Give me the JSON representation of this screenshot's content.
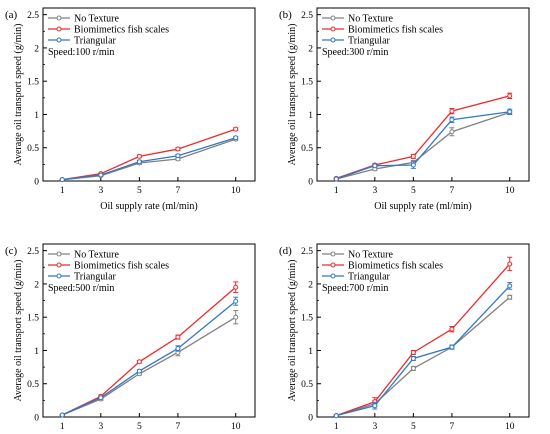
{
  "chart_data": [
    {
      "type": "line",
      "panel_label": "(a)",
      "speed_label": "Speed:100 r/min",
      "xlabel": "Oil supply rate (ml/min)",
      "ylabel": "Average oil transport speed (g/min)",
      "x": [
        1,
        3,
        5,
        7,
        10
      ],
      "x_ticks": [
        "1",
        "3",
        "5",
        "7",
        "10"
      ],
      "y_ticks": [
        "0",
        "0.5",
        "1",
        "1.5",
        "2",
        "2.5"
      ],
      "ylim": [
        0,
        2.6
      ],
      "legend": "top-left",
      "grid": false,
      "series": [
        {
          "name": "No Texture",
          "color": "#808080",
          "values": [
            0.02,
            0.08,
            0.27,
            0.33,
            0.63
          ],
          "errors": [
            0.005,
            0.01,
            0.02,
            0.02,
            0.02
          ]
        },
        {
          "name": "Biomimetics fish scales",
          "color": "#ee2a2a",
          "values": [
            0.02,
            0.11,
            0.37,
            0.48,
            0.78
          ],
          "errors": [
            0.005,
            0.01,
            0.02,
            0.02,
            0.02
          ]
        },
        {
          "name": "Triangular",
          "color": "#2f78c8",
          "values": [
            0.02,
            0.09,
            0.29,
            0.38,
            0.65
          ],
          "errors": [
            0.005,
            0.01,
            0.02,
            0.02,
            0.02
          ]
        }
      ]
    },
    {
      "type": "line",
      "panel_label": "(b)",
      "speed_label": "Speed:300 r/min",
      "xlabel": "Oil supply rate (ml/min)",
      "ylabel": "Average oil transport speed (g/min)",
      "x": [
        1,
        3,
        5,
        7,
        10
      ],
      "x_ticks": [
        "1",
        "3",
        "5",
        "7",
        "10"
      ],
      "y_ticks": [
        "0",
        "0.5",
        "1",
        "1.5",
        "2",
        "2.5"
      ],
      "ylim": [
        0,
        2.6
      ],
      "legend": "top-left",
      "grid": false,
      "series": [
        {
          "name": "No Texture",
          "color": "#808080",
          "values": [
            0.03,
            0.18,
            0.28,
            0.74,
            1.03
          ],
          "errors": [
            0.005,
            0.02,
            0.03,
            0.06,
            0.03
          ]
        },
        {
          "name": "Biomimetics fish scales",
          "color": "#ee2a2a",
          "values": [
            0.04,
            0.24,
            0.37,
            1.05,
            1.28
          ],
          "errors": [
            0.005,
            0.02,
            0.03,
            0.04,
            0.04
          ]
        },
        {
          "name": "Triangular",
          "color": "#2f78c8",
          "values": [
            0.03,
            0.23,
            0.24,
            0.92,
            1.04
          ],
          "errors": [
            0.005,
            0.02,
            0.05,
            0.04,
            0.04
          ]
        }
      ]
    },
    {
      "type": "line",
      "panel_label": "(c)",
      "speed_label": "Speed:500 r/min",
      "xlabel": "Oil supply rate (ml/min)",
      "ylabel": "Average oil transport speed (g/min)",
      "x": [
        1,
        3,
        5,
        7,
        10
      ],
      "x_ticks": [
        "1",
        "3",
        "5",
        "7",
        "10"
      ],
      "y_ticks": [
        "0",
        "0.5",
        "1",
        "1.5",
        "2",
        "2.5"
      ],
      "ylim": [
        0,
        2.6
      ],
      "legend": "top-left",
      "grid": false,
      "series": [
        {
          "name": "No Texture",
          "color": "#808080",
          "values": [
            0.03,
            0.27,
            0.65,
            0.97,
            1.5
          ],
          "errors": [
            0.005,
            0.02,
            0.02,
            0.05,
            0.1
          ]
        },
        {
          "name": "Biomimetics fish scales",
          "color": "#ee2a2a",
          "values": [
            0.03,
            0.31,
            0.83,
            1.2,
            1.95
          ],
          "errors": [
            0.005,
            0.02,
            0.02,
            0.03,
            0.08
          ]
        },
        {
          "name": "Triangular",
          "color": "#2f78c8",
          "values": [
            0.03,
            0.29,
            0.69,
            1.03,
            1.74
          ],
          "errors": [
            0.005,
            0.02,
            0.02,
            0.04,
            0.06
          ]
        }
      ]
    },
    {
      "type": "line",
      "panel_label": "(d)",
      "speed_label": "Speed:700 r/min",
      "xlabel": "Oil supply rate (ml/min)",
      "ylabel": "Average oil transport speed (g/min)",
      "x": [
        1,
        3,
        5,
        7,
        10
      ],
      "x_ticks": [
        "1",
        "3",
        "5",
        "7",
        "10"
      ],
      "y_ticks": [
        "0",
        "0.5",
        "1",
        "1.5",
        "2",
        "2.5"
      ],
      "ylim": [
        0,
        2.6
      ],
      "legend": "top-left",
      "grid": false,
      "series": [
        {
          "name": "No Texture",
          "color": "#808080",
          "values": [
            0.02,
            0.2,
            0.73,
            1.05,
            1.8
          ],
          "errors": [
            0.005,
            0.05,
            0.03,
            0.03,
            0.03
          ]
        },
        {
          "name": "Biomimetics fish scales",
          "color": "#ee2a2a",
          "values": [
            0.02,
            0.23,
            0.97,
            1.32,
            2.3
          ],
          "errors": [
            0.005,
            0.06,
            0.03,
            0.04,
            0.1
          ]
        },
        {
          "name": "Triangular",
          "color": "#2f78c8",
          "values": [
            0.02,
            0.17,
            0.88,
            1.05,
            1.97
          ],
          "errors": [
            0.005,
            0.05,
            0.03,
            0.03,
            0.05
          ]
        }
      ]
    }
  ]
}
